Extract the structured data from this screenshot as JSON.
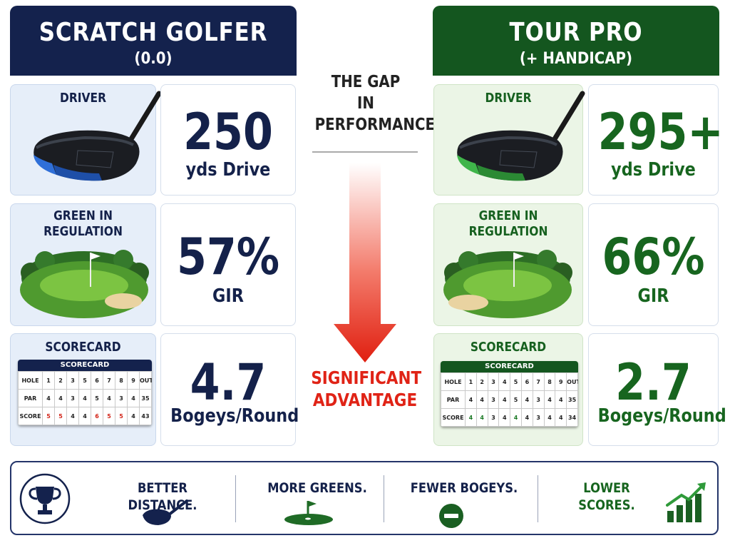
{
  "left": {
    "title": "SCRATCH GOLFER",
    "subtitle": "(0.0)",
    "driver_label": "DRIVER",
    "gir_label": "GREEN IN REGULATION",
    "scorecard_label": "SCORECARD",
    "driver_value": "250",
    "driver_unit": "yds Drive",
    "gir_value": "57%",
    "gir_unit": "GIR",
    "bogey_value": "4.7",
    "bogey_unit": "Bogeys/Round",
    "scorecard": {
      "header": "SCORECARD",
      "rows": [
        {
          "label": "HOLE",
          "cells": [
            "1",
            "2",
            "3",
            "5",
            "6",
            "7",
            "8",
            "9",
            "OUT"
          ]
        },
        {
          "label": "PAR",
          "cells": [
            "4",
            "4",
            "3",
            "4",
            "5",
            "4",
            "3",
            "4",
            "35"
          ]
        },
        {
          "label": "SCORE",
          "cells": [
            "5",
            "5",
            "4",
            "4",
            "6",
            "5",
            "5",
            "4",
            "43"
          ]
        }
      ]
    }
  },
  "right": {
    "title": "TOUR PRO",
    "subtitle": "(+ HANDICAP)",
    "driver_label": "DRIVER",
    "gir_label": "GREEN IN REGULATION",
    "scorecard_label": "SCORECARD",
    "driver_value": "295+",
    "driver_unit": "yds Drive",
    "gir_value": "66%",
    "gir_unit": "GIR",
    "bogey_value": "2.7",
    "bogey_unit": "Bogeys/Round",
    "scorecard": {
      "header": "SCORECARD",
      "rows": [
        {
          "label": "HOLE",
          "cells": [
            "1",
            "2",
            "3",
            "4",
            "5",
            "6",
            "7",
            "8",
            "9",
            "OUT"
          ]
        },
        {
          "label": "PAR",
          "cells": [
            "4",
            "4",
            "3",
            "4",
            "5",
            "4",
            "3",
            "4",
            "4",
            "35"
          ]
        },
        {
          "label": "SCORE",
          "cells": [
            "4",
            "4",
            "3",
            "4",
            "4",
            "4",
            "3",
            "4",
            "4",
            "34"
          ]
        }
      ]
    }
  },
  "middle": {
    "title": "THE GAP IN PERFORMANCE",
    "footer": "SIGNIFICANT ADVANTAGE"
  },
  "banner": {
    "distance": "BETTER DISTANCE.",
    "greens": "MORE GREENS.",
    "bogeys": "FEWER BOGEYS.",
    "scores": "LOWER SCORES."
  },
  "colors": {
    "navy": "#14224d",
    "green": "#14561f",
    "accent_red": "#e02316",
    "light_blue": "#e6eef9",
    "light_green": "#ebf5e6"
  },
  "icons": [
    "driver-club",
    "golf-green-flag",
    "trophy",
    "club-head",
    "flag-on-green",
    "minus-circle",
    "rising-bar-chart"
  ]
}
